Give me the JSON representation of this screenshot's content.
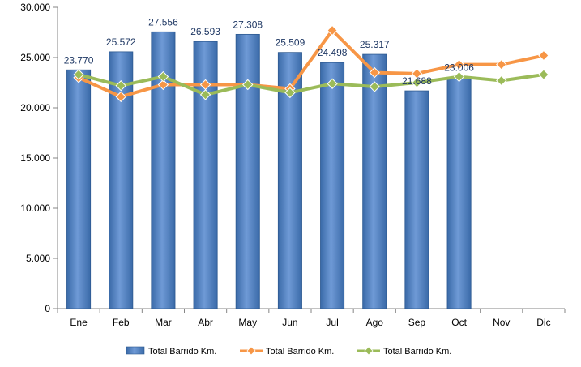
{
  "chart_data": {
    "type": "bar",
    "categories": [
      "Ene",
      "Feb",
      "Mar",
      "Abr",
      "May",
      "Jun",
      "Jul",
      "Ago",
      "Sep",
      "Oct",
      "Nov",
      "Dic"
    ],
    "ylim": [
      0,
      30000
    ],
    "y_ticks": [
      0,
      5000,
      10000,
      15000,
      20000,
      25000,
      30000
    ],
    "y_tick_labels": [
      "0",
      "5.000",
      "10.000",
      "15.000",
      "20.000",
      "25.000",
      "30.000"
    ],
    "grid": false,
    "legend_position": "bottom",
    "series": [
      {
        "name": "Total Barrido Km.",
        "type": "bar",
        "color": "#4F81BD",
        "values": [
          23770,
          25572,
          27556,
          26593,
          27308,
          25509,
          24498,
          25317,
          21688,
          23006,
          null,
          null
        ],
        "data_labels": [
          "23.770",
          "25.572",
          "27.556",
          "26.593",
          "27.308",
          "25.509",
          "24.498",
          "25.317",
          "21.688",
          "23.006",
          "",
          ""
        ]
      },
      {
        "name": "Total Barrido Km.",
        "type": "line",
        "color": "#F79646",
        "values": [
          23000,
          21100,
          22300,
          22300,
          22300,
          21900,
          27700,
          23500,
          23400,
          24300,
          24300,
          25200
        ]
      },
      {
        "name": "Total Barrido Km.",
        "type": "line",
        "color": "#9BBB59",
        "values": [
          23300,
          22200,
          23100,
          21300,
          22300,
          21500,
          22400,
          22100,
          22500,
          23100,
          22700,
          23300
        ]
      }
    ]
  }
}
